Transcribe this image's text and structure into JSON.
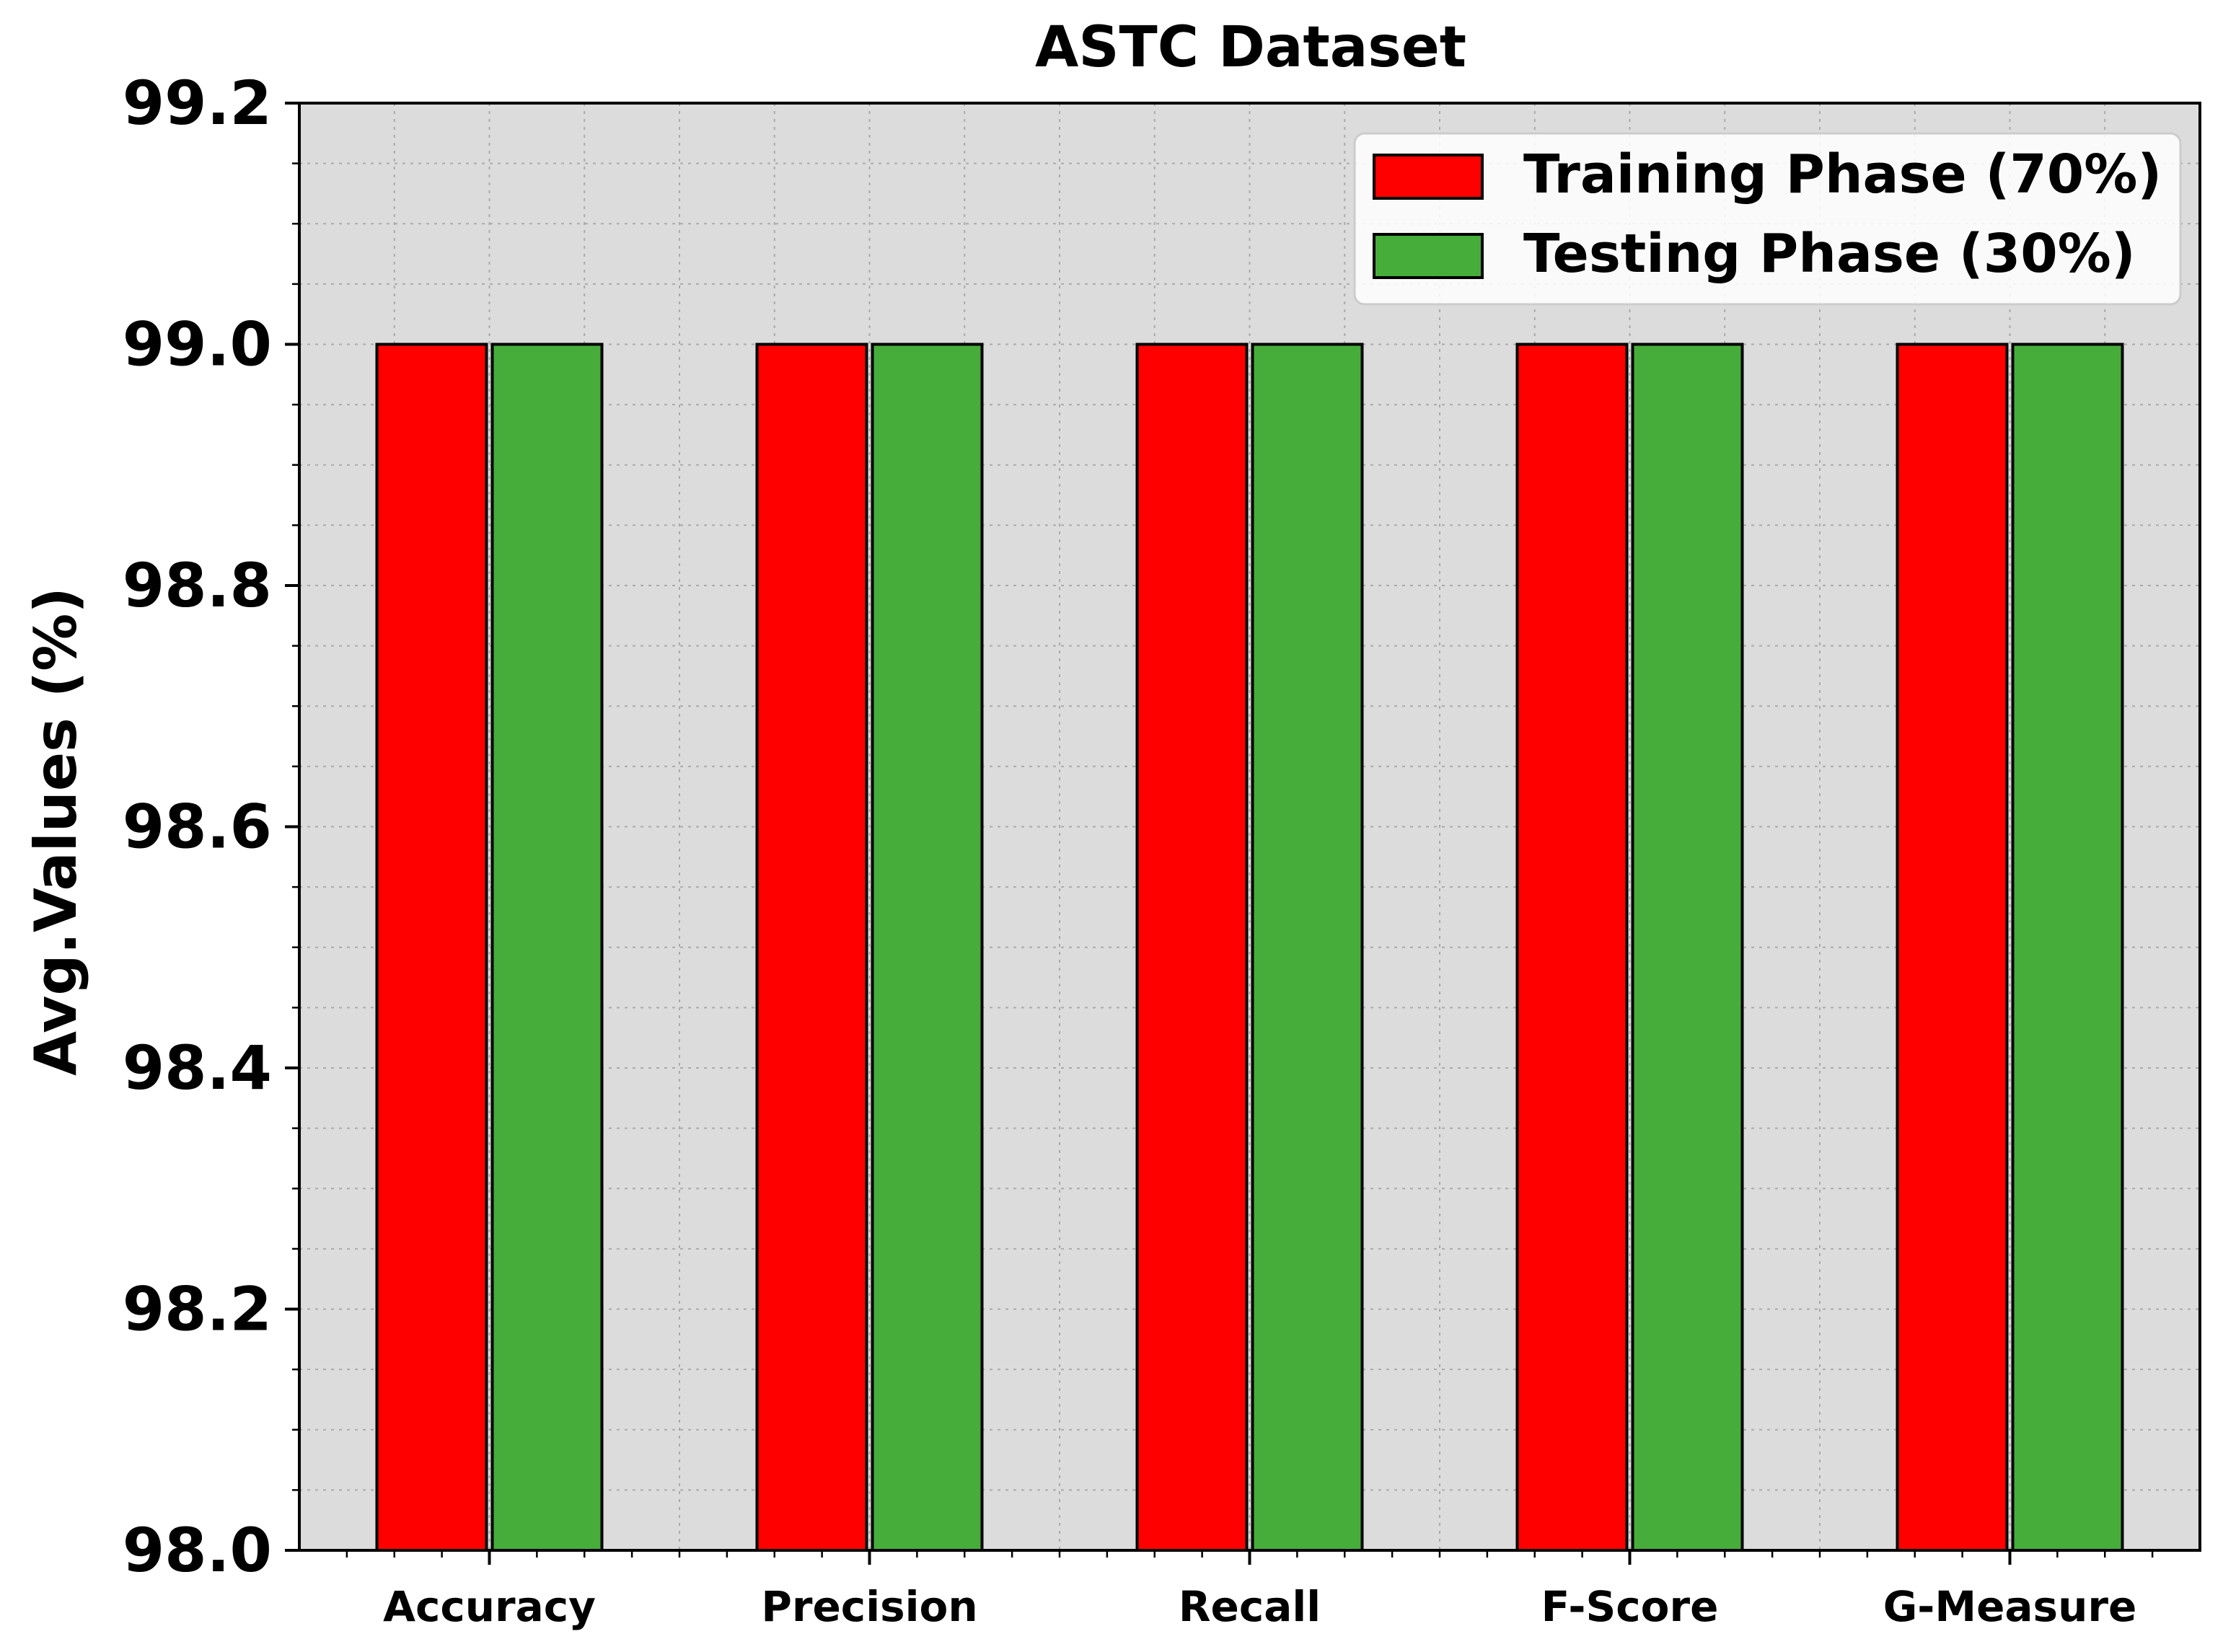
{
  "chart_data": {
    "type": "bar",
    "title": "ASTC Dataset",
    "xlabel": "",
    "ylabel": "Avg.Values (%)",
    "categories": [
      "Accuracy",
      "Precision",
      "Recall",
      "F-Score",
      "G-Measure"
    ],
    "series": [
      {
        "name": "Training Phase (70%)",
        "color": "#ff0000",
        "values": [
          99.0,
          99.0,
          99.0,
          99.0,
          99.0
        ]
      },
      {
        "name": "Testing Phase (30%)",
        "color": "#46ad3a",
        "values": [
          99.0,
          99.0,
          99.0,
          99.0,
          99.0
        ]
      }
    ],
    "ylim": [
      98.0,
      99.2
    ],
    "yticks": [
      "98.0",
      "98.2",
      "98.4",
      "98.6",
      "98.8",
      "99.0",
      "99.2"
    ],
    "grid": true,
    "legend": "top-right",
    "plot_background": "#dcdcdc"
  }
}
